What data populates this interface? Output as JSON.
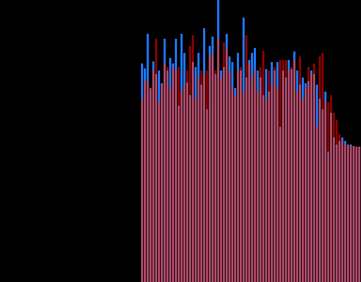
{
  "chart_data": {
    "type": "bar",
    "ylim": [
      0,
      400
    ],
    "overlap_color": "#b04a6a",
    "series": [
      {
        "color": "#1e78ff",
        "values": [
          310,
          303,
          352,
          275,
          313,
          295,
          300,
          282,
          345,
          300,
          318,
          310,
          345,
          250,
          352,
          325,
          283,
          265,
          312,
          305,
          325,
          280,
          360,
          245,
          335,
          348,
          295,
          400,
          300,
          305,
          352,
          320,
          312,
          275,
          325,
          300,
          375,
          290,
          315,
          325,
          332,
          300,
          290,
          265,
          302,
          270,
          312,
          300,
          312,
          220,
          300,
          290,
          315,
          302,
          327,
          300,
          280,
          290,
          282,
          285,
          300,
          295,
          280,
          260,
          245,
          270,
          185,
          240,
          205,
          195,
          200,
          205,
          200,
          195,
          195,
          193,
          192,
          192
        ]
      },
      {
        "color": "#8b0000",
        "values": [
          260,
          285,
          285,
          275,
          300,
          345,
          255,
          280,
          310,
          305,
          275,
          305,
          300,
          305,
          270,
          280,
          300,
          335,
          350,
          260,
          290,
          300,
          295,
          300,
          320,
          325,
          300,
          345,
          290,
          340,
          330,
          300,
          275,
          265,
          300,
          305,
          270,
          350,
          310,
          290,
          300,
          270,
          305,
          328,
          260,
          300,
          280,
          305,
          275,
          315,
          315,
          315,
          300,
          305,
          315,
          270,
          320,
          260,
          275,
          305,
          295,
          310,
          220,
          320,
          325,
          255,
          255,
          265,
          240,
          230,
          210,
          200,
          195,
          195,
          193,
          193,
          192,
          192
        ]
      }
    ]
  }
}
